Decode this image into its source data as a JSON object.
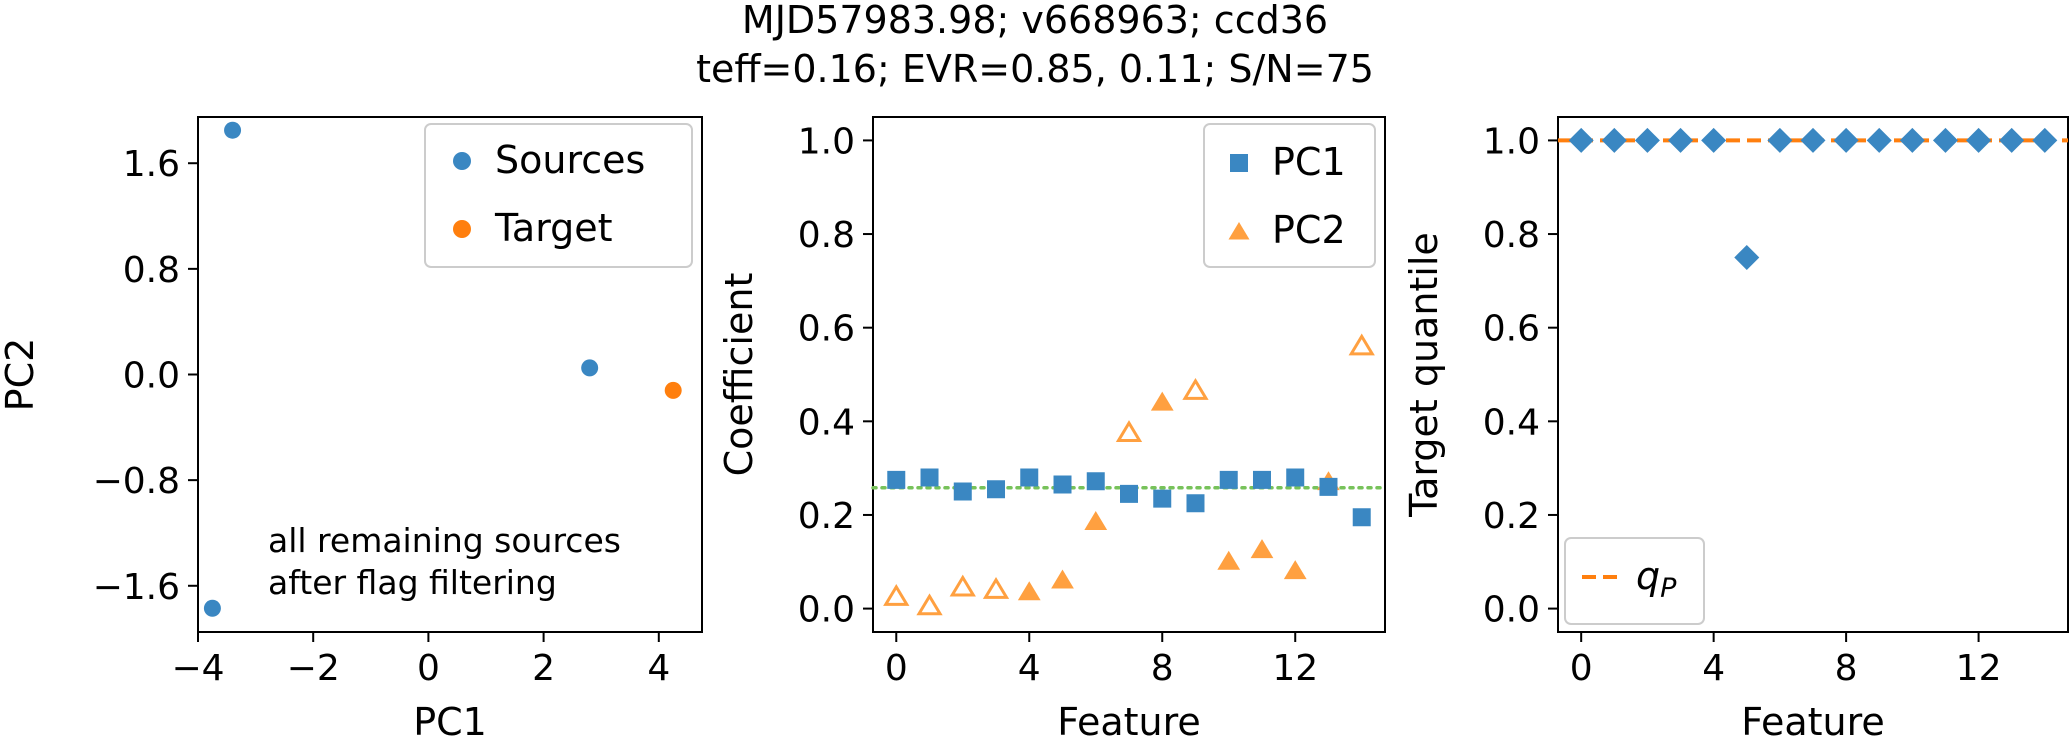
{
  "title_line1": "MJD57983.98; v668963; ccd36",
  "title_line2": "teff=0.16; EVR=0.85, 0.11; S/N=75",
  "colors": {
    "blue": "#3a87c2",
    "orange": "#ff7f0e",
    "light_orange": "#ffa040",
    "green_dotted": "#77c25a",
    "legend_edge": "#cccccc"
  },
  "chart_data": [
    {
      "type": "scatter",
      "title": "",
      "xlabel": "PC1",
      "ylabel": "PC2",
      "xlim": [
        -4.0,
        4.75
      ],
      "ylim": [
        -1.95,
        1.95
      ],
      "xticks": [
        -4,
        -2,
        0,
        2,
        4
      ],
      "xtick_labels": [
        "−4",
        "−2",
        "0",
        "2",
        "4"
      ],
      "yticks": [
        -1.6,
        -0.8,
        0.0,
        0.8,
        1.6
      ],
      "ytick_labels": [
        "−1.6",
        "−0.8",
        "0.0",
        "0.8",
        "1.6"
      ],
      "series": [
        {
          "name": "Sources",
          "color": "#3a87c2",
          "points": [
            [
              -3.4,
              1.85
            ],
            [
              2.8,
              0.05
            ],
            [
              -3.75,
              -1.77
            ]
          ]
        },
        {
          "name": "Target",
          "color": "#ff7f0e",
          "points": [
            [
              4.25,
              -0.12
            ]
          ]
        }
      ],
      "legend": [
        "Sources",
        "Target"
      ],
      "legend_position": "top-right",
      "annotation": [
        "all remaining sources",
        "after flag filtering"
      ]
    },
    {
      "type": "scatter",
      "xlabel": "Feature",
      "ylabel": "Coefficient",
      "xlim": [
        -0.7,
        14.7
      ],
      "ylim": [
        -0.05,
        1.05
      ],
      "xticks": [
        0,
        4,
        8,
        12
      ],
      "xtick_labels": [
        "0",
        "4",
        "8",
        "12"
      ],
      "yticks": [
        0.0,
        0.2,
        0.4,
        0.6,
        0.8,
        1.0
      ],
      "ytick_labels": [
        "0.0",
        "0.2",
        "0.4",
        "0.6",
        "0.8",
        "1.0"
      ],
      "reference_line": 0.258,
      "series": [
        {
          "name": "PC1",
          "marker": "square",
          "color": "#3a87c2",
          "x": [
            0,
            1,
            2,
            3,
            4,
            5,
            6,
            7,
            8,
            9,
            10,
            11,
            12,
            13,
            14
          ],
          "values": [
            0.275,
            0.28,
            0.25,
            0.255,
            0.28,
            0.265,
            0.272,
            0.245,
            0.235,
            0.225,
            0.275,
            0.275,
            0.28,
            0.26,
            0.195
          ]
        },
        {
          "name": "PC2",
          "marker": "triangle",
          "color": "#ffa040",
          "x": [
            0,
            1,
            2,
            3,
            4,
            5,
            6,
            7,
            8,
            9,
            10,
            11,
            12,
            13,
            14
          ],
          "values": [
            0.025,
            0.005,
            0.045,
            0.04,
            0.035,
            0.06,
            0.185,
            0.375,
            0.44,
            0.465,
            0.1,
            0.125,
            0.08,
            0.27,
            0.56
          ],
          "hollow": [
            true,
            true,
            true,
            true,
            false,
            false,
            false,
            true,
            false,
            true,
            false,
            false,
            false,
            false,
            true
          ]
        }
      ],
      "legend": [
        "PC1",
        "PC2"
      ],
      "legend_position": "top-right"
    },
    {
      "type": "scatter",
      "xlabel": "Feature",
      "ylabel": "Target quantile",
      "xlim": [
        -0.7,
        14.7
      ],
      "ylim": [
        -0.05,
        1.05
      ],
      "xticks": [
        0,
        4,
        8,
        12
      ],
      "xtick_labels": [
        "0",
        "4",
        "8",
        "12"
      ],
      "yticks": [
        0.0,
        0.2,
        0.4,
        0.6,
        0.8,
        1.0
      ],
      "ytick_labels": [
        "0.0",
        "0.2",
        "0.4",
        "0.6",
        "0.8",
        "1.0"
      ],
      "reference_line": 1.0,
      "series": [
        {
          "name": "Target quantile",
          "marker": "diamond",
          "color": "#3a87c2",
          "x": [
            0,
            1,
            2,
            3,
            4,
            5,
            6,
            7,
            8,
            9,
            10,
            11,
            12,
            13,
            14
          ],
          "values": [
            1.0,
            1.0,
            1.0,
            1.0,
            1.0,
            0.75,
            1.0,
            1.0,
            1.0,
            1.0,
            1.0,
            1.0,
            1.0,
            1.0,
            1.0
          ]
        }
      ],
      "legend_main": "q",
      "legend_sub": "P",
      "legend_position": "bottom-left"
    }
  ]
}
